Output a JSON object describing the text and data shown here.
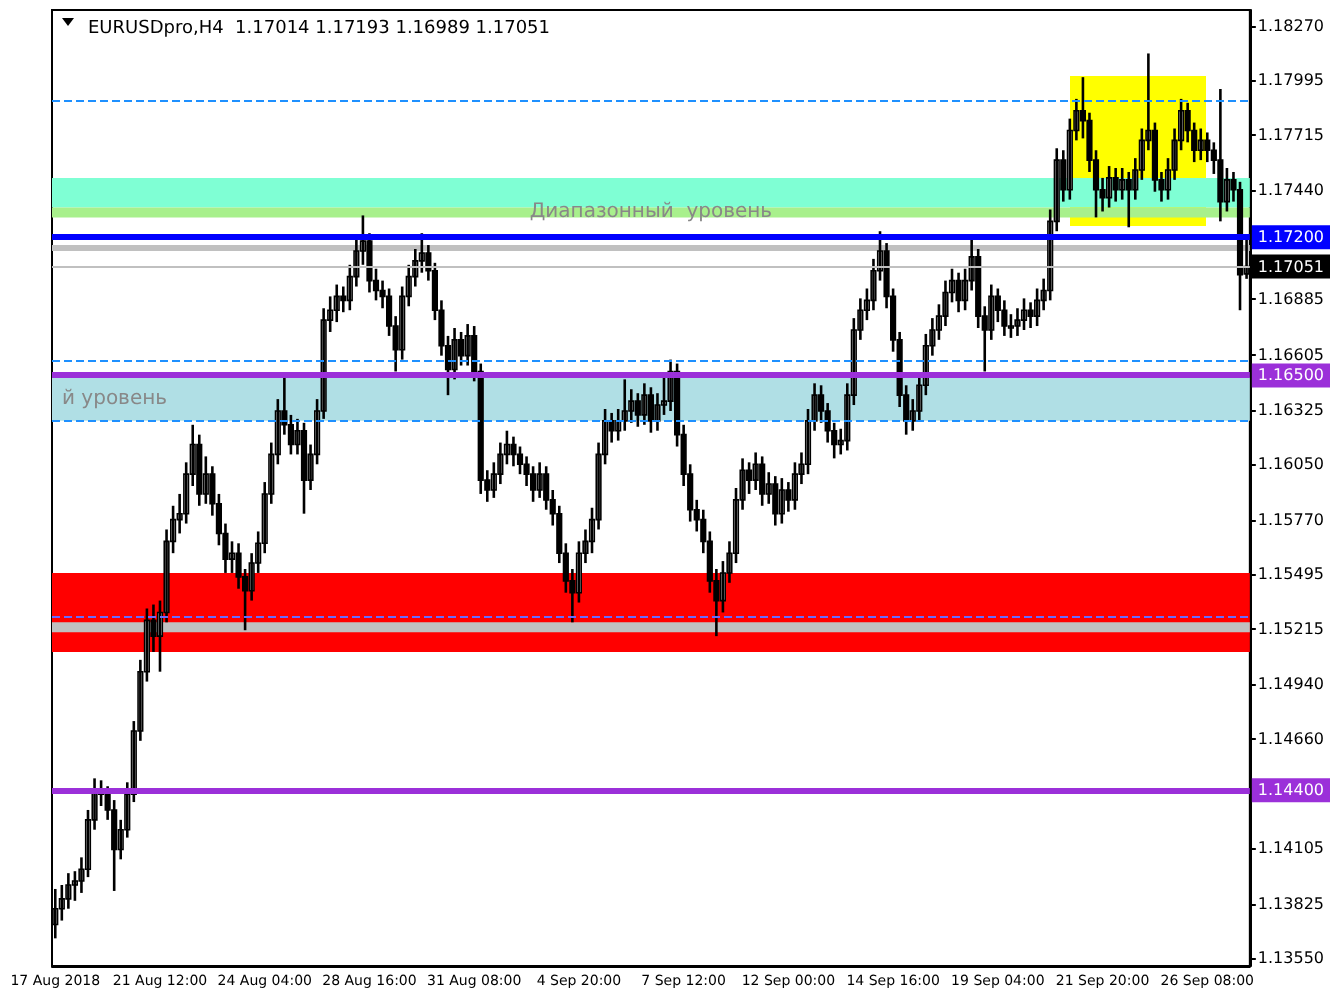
{
  "chart_data": {
    "type": "candlestick",
    "title": "EURUSDpro,H4  1.17014 1.17193 1.16989 1.17051",
    "categories": [
      "17 Aug 2018",
      null,
      null,
      null,
      null,
      null,
      null,
      null,
      null,
      null,
      null,
      null,
      null,
      null,
      null,
      null,
      "21 Aug 12:00",
      null,
      null,
      null,
      null,
      null,
      null,
      null,
      null,
      null,
      null,
      null,
      null,
      null,
      null,
      null,
      "24 Aug 04:00",
      null,
      null,
      null,
      null,
      null,
      null,
      null,
      null,
      null,
      null,
      null,
      null,
      null,
      null,
      null,
      "28 Aug 16:00",
      null,
      null,
      null,
      null,
      null,
      null,
      null,
      null,
      null,
      null,
      null,
      null,
      null,
      null,
      null,
      "31 Aug 08:00",
      null,
      null,
      null,
      null,
      null,
      null,
      null,
      null,
      null,
      null,
      null,
      null,
      null,
      null,
      null,
      "4 Sep 20:00",
      null,
      null,
      null,
      null,
      null,
      null,
      null,
      null,
      null,
      null,
      null,
      null,
      null,
      null,
      null,
      "7 Sep 12:00",
      null,
      null,
      null,
      null,
      null,
      null,
      null,
      null,
      null,
      null,
      null,
      null,
      null,
      null,
      null,
      "12 Sep 00:00",
      null,
      null,
      null,
      null,
      null,
      null,
      null,
      null,
      null,
      null,
      null,
      null,
      null,
      null,
      null,
      "14 Sep 16:00",
      null,
      null,
      null,
      null,
      null,
      null,
      null,
      null,
      null,
      null,
      null,
      null,
      null,
      null,
      null,
      "19 Sep 04:00",
      null,
      null,
      null,
      null,
      null,
      null,
      null,
      null,
      null,
      null,
      null,
      null,
      null,
      null,
      null,
      "21 Sep 20:00",
      null,
      null,
      null,
      null,
      null,
      null,
      null,
      null,
      null,
      null,
      null,
      null,
      null,
      null,
      null,
      "26 Sep 08:00",
      null,
      null,
      null,
      null,
      null,
      null
    ],
    "ohlc": [
      [
        1.1372,
        1.139,
        1.1365,
        1.138
      ],
      [
        1.138,
        1.1392,
        1.1374,
        1.1385
      ],
      [
        1.1385,
        1.1398,
        1.138,
        1.1392
      ],
      [
        1.1392,
        1.1399,
        1.1384,
        1.1394
      ],
      [
        1.1394,
        1.1406,
        1.1388,
        1.14
      ],
      [
        1.14,
        1.143,
        1.1396,
        1.1425
      ],
      [
        1.1425,
        1.1446,
        1.142,
        1.144
      ],
      [
        1.144,
        1.1445,
        1.1432,
        1.1438
      ],
      [
        1.1438,
        1.1442,
        1.1425,
        1.143
      ],
      [
        1.143,
        1.1435,
        1.1389,
        1.141
      ],
      [
        1.141,
        1.1425,
        1.1405,
        1.142
      ],
      [
        1.142,
        1.1444,
        1.1416,
        1.1438
      ],
      [
        1.1438,
        1.1475,
        1.1434,
        1.147
      ],
      [
        1.147,
        1.1506,
        1.1465,
        1.15
      ],
      [
        1.15,
        1.1532,
        1.1495,
        1.1526
      ],
      [
        1.1526,
        1.1534,
        1.151,
        1.1518
      ],
      [
        1.1518,
        1.1536,
        1.15,
        1.153
      ],
      [
        1.153,
        1.1572,
        1.1525,
        1.1566
      ],
      [
        1.1566,
        1.1584,
        1.156,
        1.1577
      ],
      [
        1.1577,
        1.159,
        1.157,
        1.158
      ],
      [
        1.158,
        1.1606,
        1.1575,
        1.16
      ],
      [
        1.16,
        1.1625,
        1.1594,
        1.1615
      ],
      [
        1.1615,
        1.162,
        1.1584,
        1.159
      ],
      [
        1.159,
        1.1609,
        1.1585,
        1.16
      ],
      [
        1.16,
        1.1604,
        1.1579,
        1.1585
      ],
      [
        1.1585,
        1.159,
        1.1564,
        1.157
      ],
      [
        1.157,
        1.1575,
        1.155,
        1.1557
      ],
      [
        1.1557,
        1.1566,
        1.155,
        1.156
      ],
      [
        1.156,
        1.1565,
        1.1542,
        1.1548
      ],
      [
        1.1548,
        1.1552,
        1.1521,
        1.1541
      ],
      [
        1.1541,
        1.156,
        1.1536,
        1.1555
      ],
      [
        1.1555,
        1.1571,
        1.155,
        1.1565
      ],
      [
        1.1565,
        1.1596,
        1.156,
        1.159
      ],
      [
        1.159,
        1.1616,
        1.1585,
        1.161
      ],
      [
        1.161,
        1.1638,
        1.1605,
        1.1632
      ],
      [
        1.1632,
        1.165,
        1.162,
        1.1625
      ],
      [
        1.1625,
        1.163,
        1.161,
        1.1615
      ],
      [
        1.1615,
        1.1628,
        1.161,
        1.1622
      ],
      [
        1.1622,
        1.1626,
        1.158,
        1.1597
      ],
      [
        1.1597,
        1.1615,
        1.1592,
        1.161
      ],
      [
        1.161,
        1.1638,
        1.1605,
        1.1632
      ],
      [
        1.1632,
        1.1684,
        1.1628,
        1.1678
      ],
      [
        1.1678,
        1.169,
        1.1672,
        1.1683
      ],
      [
        1.1683,
        1.1696,
        1.1677,
        1.169
      ],
      [
        1.169,
        1.1695,
        1.1682,
        1.1688
      ],
      [
        1.1688,
        1.1706,
        1.1683,
        1.17
      ],
      [
        1.17,
        1.1719,
        1.1695,
        1.1713
      ],
      [
        1.1713,
        1.1731,
        1.1706,
        1.1718
      ],
      [
        1.1718,
        1.1722,
        1.1692,
        1.1698
      ],
      [
        1.1698,
        1.1704,
        1.1688,
        1.1693
      ],
      [
        1.1693,
        1.1698,
        1.1684,
        1.169
      ],
      [
        1.169,
        1.1694,
        1.167,
        1.1675
      ],
      [
        1.1675,
        1.168,
        1.1652,
        1.1663
      ],
      [
        1.1663,
        1.1695,
        1.1658,
        1.169
      ],
      [
        1.169,
        1.1706,
        1.1685,
        1.17
      ],
      [
        1.17,
        1.1714,
        1.1695,
        1.1708
      ],
      [
        1.1708,
        1.1722,
        1.1702,
        1.1712
      ],
      [
        1.1712,
        1.1716,
        1.1698,
        1.1703
      ],
      [
        1.1703,
        1.1707,
        1.1678,
        1.1683
      ],
      [
        1.1683,
        1.1688,
        1.166,
        1.1665
      ],
      [
        1.1665,
        1.167,
        1.164,
        1.1653
      ],
      [
        1.1653,
        1.1674,
        1.1648,
        1.1668
      ],
      [
        1.1668,
        1.1672,
        1.1655,
        1.166
      ],
      [
        1.166,
        1.1676,
        1.1655,
        1.167
      ],
      [
        1.167,
        1.1675,
        1.1647,
        1.1652
      ],
      [
        1.1652,
        1.1656,
        1.159,
        1.1597
      ],
      [
        1.1597,
        1.1602,
        1.1586,
        1.1592
      ],
      [
        1.1592,
        1.1606,
        1.1588,
        1.16
      ],
      [
        1.16,
        1.1616,
        1.1595,
        1.161
      ],
      [
        1.161,
        1.1622,
        1.1605,
        1.1615
      ],
      [
        1.1615,
        1.1619,
        1.1604,
        1.161
      ],
      [
        1.161,
        1.1614,
        1.16,
        1.1605
      ],
      [
        1.1605,
        1.1609,
        1.1594,
        1.16
      ],
      [
        1.16,
        1.1604,
        1.1586,
        1.1592
      ],
      [
        1.1592,
        1.1606,
        1.1588,
        1.16
      ],
      [
        1.16,
        1.1604,
        1.1582,
        1.1587
      ],
      [
        1.1587,
        1.1592,
        1.1574,
        1.158
      ],
      [
        1.158,
        1.1584,
        1.1555,
        1.156
      ],
      [
        1.156,
        1.1565,
        1.154,
        1.1546
      ],
      [
        1.1546,
        1.1552,
        1.1525,
        1.154
      ],
      [
        1.154,
        1.1566,
        1.1535,
        1.156
      ],
      [
        1.156,
        1.1572,
        1.1555,
        1.1566
      ],
      [
        1.1566,
        1.1583,
        1.156,
        1.1577
      ],
      [
        1.1577,
        1.1616,
        1.1572,
        1.161
      ],
      [
        1.161,
        1.1633,
        1.1605,
        1.1627
      ],
      [
        1.1627,
        1.1631,
        1.1616,
        1.1622
      ],
      [
        1.1622,
        1.1633,
        1.1617,
        1.1627
      ],
      [
        1.1627,
        1.1648,
        1.1622,
        1.1632
      ],
      [
        1.1632,
        1.1643,
        1.1626,
        1.1637
      ],
      [
        1.1637,
        1.1641,
        1.1624,
        1.163
      ],
      [
        1.163,
        1.1646,
        1.1625,
        1.164
      ],
      [
        1.164,
        1.1644,
        1.1621,
        1.1627
      ],
      [
        1.1627,
        1.1641,
        1.1622,
        1.1635
      ],
      [
        1.1635,
        1.165,
        1.163,
        1.1637
      ],
      [
        1.1637,
        1.1658,
        1.1632,
        1.1652
      ],
      [
        1.1652,
        1.1656,
        1.1614,
        1.162
      ],
      [
        1.162,
        1.1625,
        1.1594,
        1.16
      ],
      [
        1.16,
        1.1605,
        1.1576,
        1.1582
      ],
      [
        1.1582,
        1.1587,
        1.1571,
        1.1577
      ],
      [
        1.1577,
        1.1582,
        1.156,
        1.1566
      ],
      [
        1.1566,
        1.1571,
        1.154,
        1.1546
      ],
      [
        1.1546,
        1.1552,
        1.1518,
        1.1536
      ],
      [
        1.1536,
        1.1556,
        1.153,
        1.155
      ],
      [
        1.155,
        1.1566,
        1.1545,
        1.156
      ],
      [
        1.156,
        1.1593,
        1.1555,
        1.1587
      ],
      [
        1.1587,
        1.1608,
        1.1582,
        1.1602
      ],
      [
        1.1602,
        1.1606,
        1.159,
        1.1597
      ],
      [
        1.1597,
        1.1611,
        1.1592,
        1.1605
      ],
      [
        1.1605,
        1.1609,
        1.1584,
        1.159
      ],
      [
        1.159,
        1.1601,
        1.1585,
        1.1595
      ],
      [
        1.1595,
        1.1599,
        1.1574,
        1.158
      ],
      [
        1.158,
        1.1598,
        1.1575,
        1.1592
      ],
      [
        1.1592,
        1.1596,
        1.1581,
        1.1587
      ],
      [
        1.1587,
        1.1606,
        1.1582,
        1.16
      ],
      [
        1.16,
        1.1611,
        1.1595,
        1.1605
      ],
      [
        1.1605,
        1.1633,
        1.16,
        1.1627
      ],
      [
        1.1627,
        1.1646,
        1.1622,
        1.164
      ],
      [
        1.164,
        1.1645,
        1.1626,
        1.1632
      ],
      [
        1.1632,
        1.1636,
        1.1616,
        1.1622
      ],
      [
        1.1622,
        1.1626,
        1.1608,
        1.1615
      ],
      [
        1.1615,
        1.1623,
        1.161,
        1.1617
      ],
      [
        1.1617,
        1.1646,
        1.1612,
        1.164
      ],
      [
        1.164,
        1.1679,
        1.1635,
        1.1673
      ],
      [
        1.1673,
        1.1689,
        1.1668,
        1.1683
      ],
      [
        1.1683,
        1.1694,
        1.1678,
        1.1688
      ],
      [
        1.1688,
        1.1709,
        1.1683,
        1.1703
      ],
      [
        1.1703,
        1.1723,
        1.1698,
        1.1713
      ],
      [
        1.1713,
        1.1717,
        1.1684,
        1.169
      ],
      [
        1.169,
        1.1694,
        1.1662,
        1.1668
      ],
      [
        1.1668,
        1.1672,
        1.1634,
        1.164
      ],
      [
        1.164,
        1.1645,
        1.162,
        1.1627
      ],
      [
        1.1627,
        1.1638,
        1.1622,
        1.1632
      ],
      [
        1.1632,
        1.1651,
        1.1627,
        1.1645
      ],
      [
        1.1645,
        1.1671,
        1.164,
        1.1665
      ],
      [
        1.1665,
        1.1679,
        1.166,
        1.1673
      ],
      [
        1.1673,
        1.1686,
        1.1668,
        1.168
      ],
      [
        1.168,
        1.1698,
        1.1675,
        1.1692
      ],
      [
        1.1692,
        1.1704,
        1.1687,
        1.1698
      ],
      [
        1.1698,
        1.1702,
        1.1682,
        1.1688
      ],
      [
        1.1688,
        1.1704,
        1.1683,
        1.1698
      ],
      [
        1.1698,
        1.172,
        1.1693,
        1.171
      ],
      [
        1.171,
        1.1714,
        1.1674,
        1.168
      ],
      [
        1.168,
        1.1685,
        1.1652,
        1.1673
      ],
      [
        1.1673,
        1.1696,
        1.1668,
        1.169
      ],
      [
        1.169,
        1.1694,
        1.1677,
        1.1683
      ],
      [
        1.1683,
        1.1688,
        1.167,
        1.1675
      ],
      [
        1.1675,
        1.1681,
        1.1669,
        1.1675
      ],
      [
        1.1675,
        1.1684,
        1.167,
        1.1678
      ],
      [
        1.1678,
        1.1689,
        1.1673,
        1.1683
      ],
      [
        1.1683,
        1.1687,
        1.1674,
        1.168
      ],
      [
        1.168,
        1.1694,
        1.1675,
        1.1688
      ],
      [
        1.1688,
        1.1699,
        1.1683,
        1.1693
      ],
      [
        1.1693,
        1.1734,
        1.1688,
        1.1728
      ],
      [
        1.1728,
        1.1765,
        1.1723,
        1.1759
      ],
      [
        1.1759,
        1.1764,
        1.1738,
        1.1744
      ],
      [
        1.1744,
        1.178,
        1.1739,
        1.1774
      ],
      [
        1.1774,
        1.179,
        1.1769,
        1.1784
      ],
      [
        1.1784,
        1.1801,
        1.177,
        1.1779
      ],
      [
        1.1779,
        1.1783,
        1.1753,
        1.1759
      ],
      [
        1.1759,
        1.1764,
        1.173,
        1.1744
      ],
      [
        1.1744,
        1.175,
        1.1733,
        1.174
      ],
      [
        1.174,
        1.1756,
        1.1735,
        1.175
      ],
      [
        1.175,
        1.1755,
        1.1738,
        1.1744
      ],
      [
        1.1744,
        1.1755,
        1.1739,
        1.1749
      ],
      [
        1.1749,
        1.1753,
        1.1725,
        1.1744
      ],
      [
        1.1744,
        1.176,
        1.1739,
        1.1754
      ],
      [
        1.1754,
        1.1775,
        1.1749,
        1.1769
      ],
      [
        1.1769,
        1.1813,
        1.1764,
        1.1774
      ],
      [
        1.1774,
        1.1778,
        1.1743,
        1.1749
      ],
      [
        1.1749,
        1.1753,
        1.1738,
        1.1744
      ],
      [
        1.1744,
        1.176,
        1.1739,
        1.1754
      ],
      [
        1.1754,
        1.1775,
        1.1749,
        1.1769
      ],
      [
        1.1769,
        1.179,
        1.1764,
        1.1784
      ],
      [
        1.1784,
        1.1788,
        1.1768,
        1.1774
      ],
      [
        1.1774,
        1.1778,
        1.1758,
        1.1764
      ],
      [
        1.1764,
        1.1775,
        1.1759,
        1.1769
      ],
      [
        1.1769,
        1.1773,
        1.1758,
        1.1764
      ],
      [
        1.1764,
        1.1768,
        1.1752,
        1.1759
      ],
      [
        1.1759,
        1.1795,
        1.1728,
        1.1738
      ],
      [
        1.1738,
        1.1755,
        1.1733,
        1.1749
      ],
      [
        1.1749,
        1.1753,
        1.1738,
        1.1744
      ],
      [
        1.1744,
        1.1748,
        1.1683,
        1.1701
      ],
      [
        1.17014,
        1.17193,
        1.16989,
        1.17051
      ]
    ],
    "ylim": [
      1.1351,
      1.1835
    ],
    "yticks": [
      {
        "value": 1.1827,
        "label": "1.18270"
      },
      {
        "value": 1.17995,
        "label": "1.17995"
      },
      {
        "value": 1.17715,
        "label": "1.17715"
      },
      {
        "value": 1.1744,
        "label": "1.17440"
      },
      {
        "value": 1.16885,
        "label": "1.16885"
      },
      {
        "value": 1.16605,
        "label": "1.16605"
      },
      {
        "value": 1.16325,
        "label": "1.16325"
      },
      {
        "value": 1.1605,
        "label": "1.16050"
      },
      {
        "value": 1.1577,
        "label": "1.15770"
      },
      {
        "value": 1.15495,
        "label": "1.15495"
      },
      {
        "value": 1.15215,
        "label": "1.15215"
      },
      {
        "value": 1.1494,
        "label": "1.14940"
      },
      {
        "value": 1.1466,
        "label": "1.14660"
      },
      {
        "value": 1.14105,
        "label": "1.14105"
      },
      {
        "value": 1.13825,
        "label": "1.13825"
      },
      {
        "value": 1.1355,
        "label": "1.13550"
      }
    ],
    "bands": [
      {
        "axis": "y",
        "from": 1.1735,
        "to": 1.175,
        "color": "#7fffd4"
      },
      {
        "axis": "y",
        "from": 1.173,
        "to": 1.1735,
        "color": "#a8f08c",
        "label": "Диапазонный  уровень"
      },
      {
        "axis": "y",
        "from": 1.1713,
        "to": 1.1716,
        "color": "#c0c0c0"
      },
      {
        "axis": "y",
        "from": 1.1627,
        "to": 1.1649,
        "color": "#b0dfe5",
        "label": "й уровень"
      },
      {
        "axis": "y",
        "from": 1.151,
        "to": 1.155,
        "color": "#ff0000"
      },
      {
        "axis": "y",
        "from": 1.152,
        "to": 1.1525,
        "color": "#c0c0c0"
      }
    ],
    "ref_lines": [
      {
        "axis": "y",
        "value": 1.1789,
        "color": "#1e90ff",
        "line_style": "dashed"
      },
      {
        "axis": "y",
        "value": 1.1658,
        "color": "#1e90ff",
        "line_style": "dashed"
      },
      {
        "axis": "y",
        "value": 1.1627,
        "color": "#1e90ff",
        "line_style": "dashed"
      },
      {
        "axis": "y",
        "value": 1.1528,
        "color": "#6a6aff",
        "line_style": "dashed"
      },
      {
        "axis": "y",
        "value": 1.17051,
        "label": "1.17051",
        "color": "#c0c0c0",
        "line_style": "solid"
      },
      {
        "axis": "y",
        "value": 1.172,
        "label": "1.17200",
        "color": "#0000ff",
        "line_style": "solid"
      },
      {
        "axis": "y",
        "value": 1.165,
        "label": "1.16500",
        "color": "#9b30d9",
        "line_style": "solid"
      },
      {
        "axis": "y",
        "value": 1.144,
        "label": "1.14400",
        "color": "#9b30d9",
        "line_style": "solid"
      }
    ]
  }
}
